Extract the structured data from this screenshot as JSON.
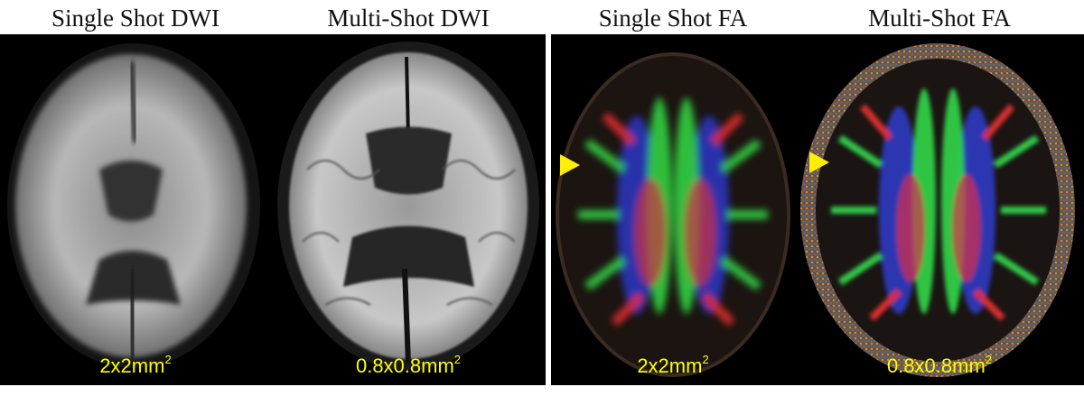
{
  "panels": [
    {
      "title": "Single Shot DWI",
      "resolution": "2x2mm",
      "unit_exp": "2"
    },
    {
      "title": "Multi-Shot DWI",
      "resolution": "0.8x0.8mm",
      "unit_exp": "2"
    },
    {
      "title": "Single Shot FA",
      "resolution": "2x2mm",
      "unit_exp": "2"
    },
    {
      "title": "Multi-Shot FA",
      "resolution": "0.8x0.8mm",
      "unit_exp": "2"
    }
  ],
  "colors": {
    "label": "#ffff00",
    "arrowhead": "#ffee00",
    "background": "#000000"
  },
  "icons": [
    "arrowhead-marker-icon"
  ]
}
